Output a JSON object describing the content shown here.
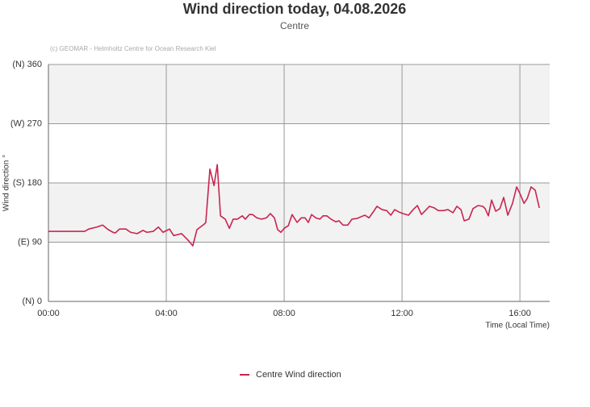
{
  "chart_data": {
    "type": "line",
    "title": "Wind direction today, 04.08.2026",
    "subtitle": "Centre",
    "credit": "(c) GEOMAR - Helmholtz Centre for Ocean Research Kiel",
    "y_label": "Wind direction °",
    "x_label": "Time (Local Time)",
    "xlim": [
      0,
      17.01
    ],
    "xticks": [
      {
        "value": 0,
        "label": "00:00"
      },
      {
        "value": 4,
        "label": "04:00"
      },
      {
        "value": 8,
        "label": "08:00"
      },
      {
        "value": 12,
        "label": "12:00"
      },
      {
        "value": 16,
        "label": "16:00"
      }
    ],
    "ylim": [
      0,
      360
    ],
    "yticks": [
      {
        "value": 0,
        "label": "(N) 0"
      },
      {
        "value": 90,
        "label": "(E) 90"
      },
      {
        "value": 180,
        "label": "(S) 180"
      },
      {
        "value": 270,
        "label": "(W) 270"
      },
      {
        "value": 360,
        "label": "(N) 360"
      }
    ],
    "grid": true,
    "legend": "bottom",
    "series": [
      {
        "name": "Centre Wind direction",
        "color": "#c8254f",
        "x": [
          0,
          1.23,
          1.37,
          1.64,
          1.84,
          2.0,
          2.19,
          2.27,
          2.41,
          2.63,
          2.79,
          3.01,
          3.21,
          3.34,
          3.56,
          3.73,
          3.89,
          4.11,
          4.25,
          4.52,
          4.74,
          4.9,
          5.04,
          5.29,
          5.34,
          5.48,
          5.62,
          5.73,
          5.84,
          6.0,
          6.14,
          6.27,
          6.41,
          6.58,
          6.68,
          6.82,
          6.93,
          7.07,
          7.23,
          7.4,
          7.53,
          7.67,
          7.78,
          7.89,
          8.0,
          8.14,
          8.27,
          8.44,
          8.58,
          8.71,
          8.82,
          8.93,
          9.07,
          9.21,
          9.32,
          9.45,
          9.59,
          9.75,
          9.86,
          10.0,
          10.16,
          10.3,
          10.47,
          10.6,
          10.74,
          10.88,
          11.04,
          11.15,
          11.32,
          11.48,
          11.62,
          11.75,
          11.89,
          12.03,
          12.22,
          12.38,
          12.52,
          12.66,
          12.79,
          12.93,
          13.1,
          13.23,
          13.4,
          13.56,
          13.73,
          13.86,
          14.0,
          14.11,
          14.27,
          14.41,
          14.58,
          14.74,
          14.82,
          14.93,
          15.04,
          15.18,
          15.32,
          15.45,
          15.59,
          15.75,
          15.89,
          16.0,
          16.14,
          16.25,
          16.38,
          16.52,
          16.66
        ],
        "values": [
          106.5,
          106.5,
          110,
          113,
          116,
          110,
          105,
          104,
          110,
          110,
          105,
          103,
          108,
          105,
          106.5,
          113,
          105,
          110,
          100,
          103,
          93,
          84.5,
          109,
          117.5,
          120,
          201,
          176,
          208,
          130,
          125,
          111,
          125,
          125,
          130,
          125,
          132,
          132,
          127,
          125,
          127,
          133.5,
          127,
          109,
          105,
          111,
          115,
          132,
          120,
          127,
          127,
          120,
          132,
          127,
          125,
          130,
          130,
          125,
          121,
          122.5,
          116,
          116,
          125,
          126,
          128.5,
          131,
          127,
          137,
          144.5,
          139.5,
          138,
          131,
          139.5,
          136,
          133.5,
          131,
          139.5,
          145.7,
          132,
          138,
          144.5,
          142,
          138,
          138,
          139.5,
          134.7,
          144.5,
          139.5,
          122.5,
          125,
          141,
          145.7,
          144.5,
          141,
          130,
          154,
          137,
          141,
          158,
          131,
          149,
          174,
          164,
          149,
          156.5,
          174,
          169,
          142
        ]
      }
    ]
  }
}
